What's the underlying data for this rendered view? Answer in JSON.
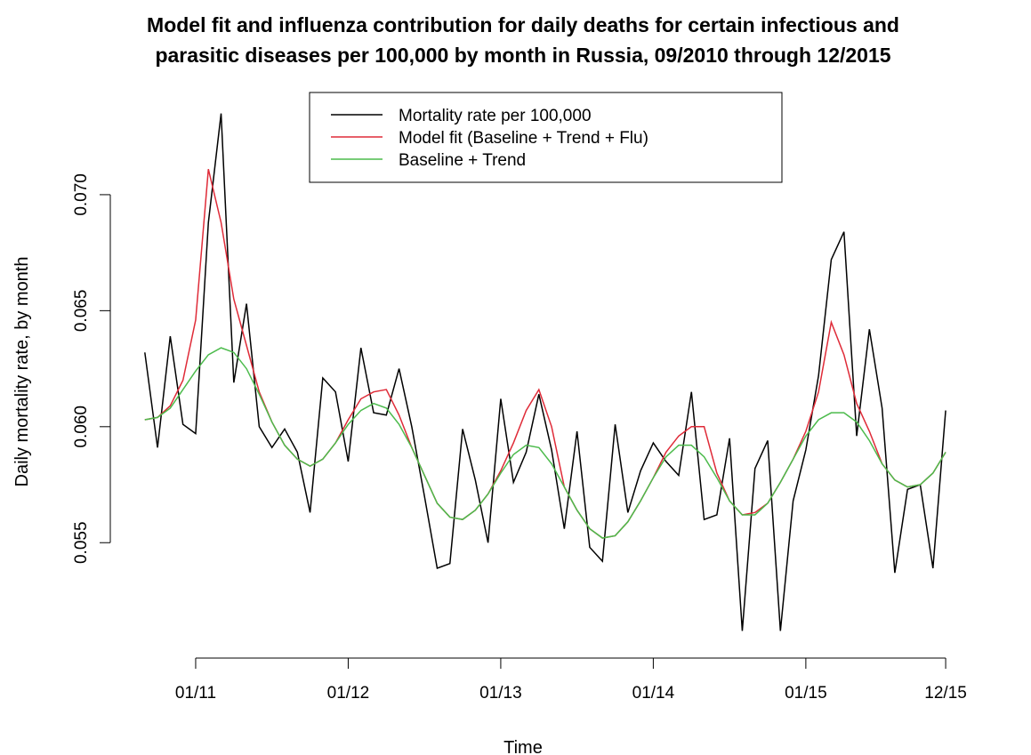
{
  "chart_data": {
    "type": "line",
    "title": "Model fit and influenza contribution for daily deaths for certain infectious and",
    "subtitle": "parasitic diseases per 100,000 by month in Russia, 09/2010 through 12/2015",
    "x_label": "Time",
    "y_label": "Daily mortality rate, by month",
    "categories": [
      null,
      null,
      null,
      null,
      "01/11",
      null,
      null,
      null,
      null,
      null,
      null,
      null,
      null,
      null,
      null,
      null,
      "01/12",
      null,
      null,
      null,
      null,
      null,
      null,
      null,
      null,
      null,
      null,
      null,
      "01/13",
      null,
      null,
      null,
      null,
      null,
      null,
      null,
      null,
      null,
      null,
      null,
      "01/14",
      null,
      null,
      null,
      null,
      null,
      null,
      null,
      null,
      null,
      null,
      null,
      "01/15",
      null,
      null,
      null,
      null,
      null,
      null,
      null,
      null,
      null,
      null,
      "12/15"
    ],
    "ylim": [
      0.0511,
      0.0736
    ],
    "yticks": [
      {
        "value": 0.055,
        "label": "0.055"
      },
      {
        "value": 0.06,
        "label": "0.060"
      },
      {
        "value": 0.065,
        "label": "0.065"
      },
      {
        "value": 0.07,
        "label": "0.070"
      }
    ],
    "legend": "top",
    "series": [
      {
        "name": "Mortality rate per 100,000",
        "color": "#000000",
        "values": [
          0.0632,
          0.0591,
          0.0639,
          0.0601,
          0.0597,
          0.0688,
          0.0735,
          0.0619,
          0.0653,
          0.06,
          0.0591,
          0.0599,
          0.0589,
          0.0563,
          0.0621,
          0.0615,
          0.0585,
          0.0634,
          0.0606,
          0.0605,
          0.0625,
          0.06,
          0.057,
          0.0539,
          0.0541,
          0.0599,
          0.0577,
          0.055,
          0.0612,
          0.0576,
          0.0589,
          0.0614,
          0.059,
          0.0556,
          0.0598,
          0.0548,
          0.0542,
          0.0601,
          0.0563,
          0.0581,
          0.0593,
          0.0585,
          0.0579,
          0.0615,
          0.056,
          0.0562,
          0.0595,
          0.0512,
          0.0582,
          0.0594,
          0.0512,
          0.0568,
          0.059,
          0.0622,
          0.0672,
          0.0684,
          0.0596,
          0.0642,
          0.0608,
          0.0537,
          0.0573,
          0.0575,
          0.0539,
          0.0607
        ]
      },
      {
        "name": "Model fit (Baseline + Trend + Flu)",
        "color": "#df2b38",
        "values": [
          0.0603,
          0.0604,
          0.0609,
          0.062,
          0.0646,
          0.0711,
          0.0688,
          0.0655,
          0.0635,
          0.0615,
          0.0602,
          0.0592,
          0.0586,
          0.0583,
          0.0586,
          0.0593,
          0.0603,
          0.0612,
          0.0615,
          0.0616,
          0.0605,
          0.0591,
          0.0579,
          0.0567,
          0.0561,
          0.056,
          0.0564,
          0.0571,
          0.0581,
          0.0593,
          0.0607,
          0.0616,
          0.06,
          0.0574,
          0.0564,
          0.0556,
          0.0552,
          0.0553,
          0.0559,
          0.0568,
          0.0578,
          0.0589,
          0.0596,
          0.06,
          0.06,
          0.058,
          0.0568,
          0.0562,
          0.0563,
          0.0567,
          0.0576,
          0.0586,
          0.0598,
          0.0615,
          0.0645,
          0.0631,
          0.061,
          0.0598,
          0.0584,
          0.0577,
          0.0574,
          0.0575,
          0.058,
          0.0589
        ]
      },
      {
        "name": "Baseline + Trend",
        "color": "#4cbb4c",
        "values": [
          0.0603,
          0.0604,
          0.0608,
          0.0616,
          0.0624,
          0.0631,
          0.0634,
          0.0632,
          0.0625,
          0.0614,
          0.0602,
          0.0592,
          0.0586,
          0.0583,
          0.0586,
          0.0593,
          0.0601,
          0.0607,
          0.061,
          0.0608,
          0.0601,
          0.0591,
          0.0579,
          0.0567,
          0.0561,
          0.056,
          0.0564,
          0.0571,
          0.058,
          0.0588,
          0.0592,
          0.0591,
          0.0584,
          0.0574,
          0.0564,
          0.0556,
          0.0552,
          0.0553,
          0.0559,
          0.0568,
          0.0578,
          0.0587,
          0.0592,
          0.0592,
          0.0587,
          0.0578,
          0.0568,
          0.0562,
          0.0562,
          0.0567,
          0.0576,
          0.0586,
          0.0596,
          0.0603,
          0.0606,
          0.0606,
          0.0602,
          0.0594,
          0.0584,
          0.0577,
          0.0574,
          0.0575,
          0.058,
          0.0589
        ]
      }
    ]
  }
}
